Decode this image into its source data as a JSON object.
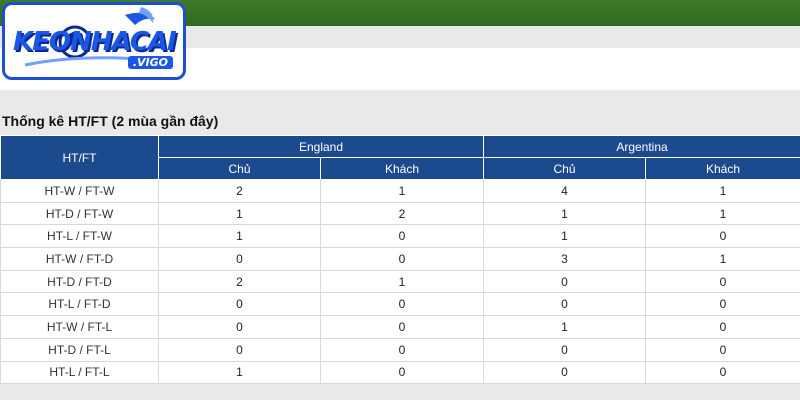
{
  "logo": {
    "text": "KEONHACAI",
    "sub": ".VIGO"
  },
  "section_title": "Thống kê HT/FT (2 mùa gần đây)",
  "table": {
    "row_header": "HT/FT",
    "teams": [
      "England",
      "Argentina"
    ],
    "subheaders": [
      "Chủ",
      "Khách",
      "Chủ",
      "Khách"
    ],
    "rows": [
      {
        "label": "HT-W / FT-W",
        "values": [
          "2",
          "1",
          "4",
          "1"
        ]
      },
      {
        "label": "HT-D / FT-W",
        "values": [
          "1",
          "2",
          "1",
          "1"
        ]
      },
      {
        "label": "HT-L / FT-W",
        "values": [
          "1",
          "0",
          "1",
          "0"
        ]
      },
      {
        "label": "HT-W / FT-D",
        "values": [
          "0",
          "0",
          "3",
          "1"
        ]
      },
      {
        "label": "HT-D / FT-D",
        "values": [
          "2",
          "1",
          "0",
          "0"
        ]
      },
      {
        "label": "HT-L / FT-D",
        "values": [
          "0",
          "0",
          "0",
          "0"
        ]
      },
      {
        "label": "HT-W / FT-L",
        "values": [
          "0",
          "0",
          "1",
          "0"
        ]
      },
      {
        "label": "HT-D / FT-L",
        "values": [
          "0",
          "0",
          "0",
          "0"
        ]
      },
      {
        "label": "HT-L / FT-L",
        "values": [
          "1",
          "0",
          "0",
          "0"
        ]
      }
    ]
  }
}
